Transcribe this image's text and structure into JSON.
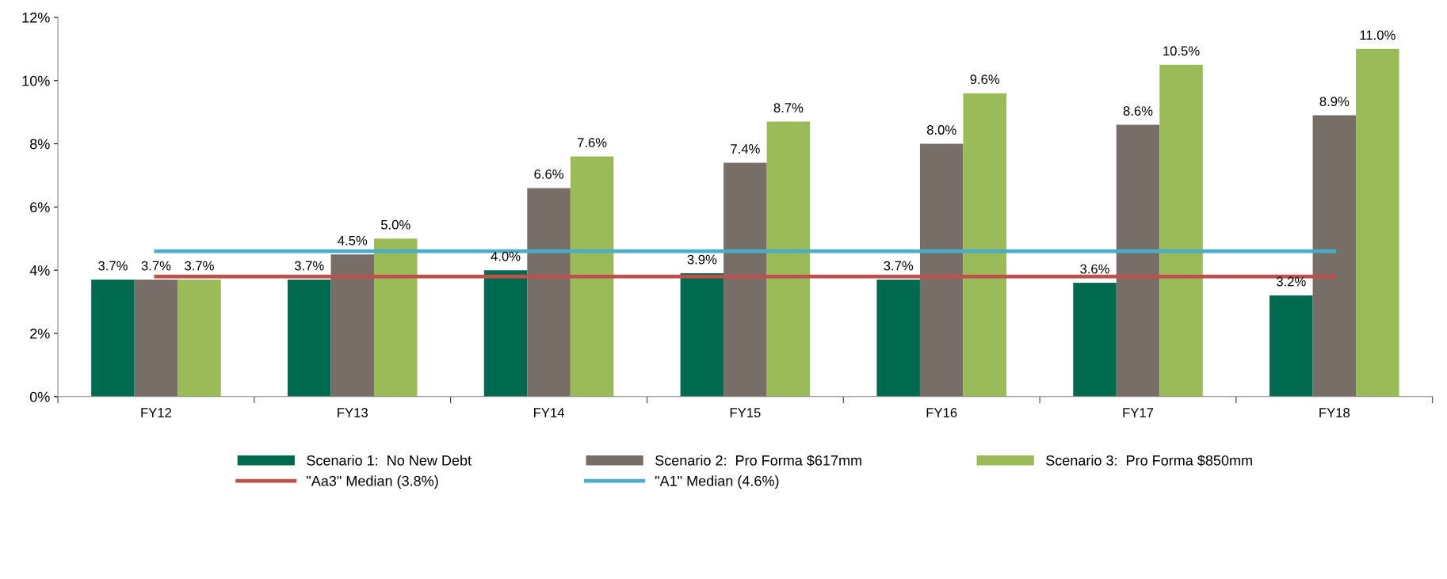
{
  "chart_data": {
    "type": "bar",
    "categories": [
      "FY12",
      "FY13",
      "FY14",
      "FY15",
      "FY16",
      "FY17",
      "FY18"
    ],
    "series": [
      {
        "name": "Scenario 1:  No New Debt",
        "color": "#006a4e",
        "values": [
          3.7,
          3.7,
          4.0,
          3.9,
          3.7,
          3.6,
          3.2
        ],
        "value_labels": [
          "3.7%",
          "3.7%",
          "4.0%",
          "3.9%",
          "3.7%",
          "3.6%",
          "3.2%"
        ]
      },
      {
        "name": "Scenario 2:  Pro Forma $617mm",
        "color": "#776e67",
        "values": [
          3.7,
          4.5,
          6.6,
          7.4,
          8.0,
          8.6,
          8.9
        ],
        "value_labels": [
          "3.7%",
          "4.5%",
          "6.6%",
          "7.4%",
          "8.0%",
          "8.6%",
          "8.9%"
        ]
      },
      {
        "name": "Scenario 3:  Pro Forma $850mm",
        "color": "#9bbb59",
        "values": [
          3.7,
          5.0,
          7.6,
          8.7,
          9.6,
          10.5,
          11.0
        ],
        "value_labels": [
          "3.7%",
          "5.0%",
          "7.6%",
          "8.7%",
          "9.6%",
          "10.5%",
          "11.0%"
        ]
      },
      {
        "name": "\"Aa3\" Median (3.8%)",
        "type": "line",
        "color": "#c0504d",
        "values": [
          3.8,
          3.8,
          3.8,
          3.8,
          3.8,
          3.8,
          3.8
        ]
      },
      {
        "name": "\"A1\" Median (4.6%)",
        "type": "line",
        "color": "#4bacc6",
        "values": [
          4.6,
          4.6,
          4.6,
          4.6,
          4.6,
          4.6,
          4.6
        ]
      }
    ],
    "ylim": [
      0,
      12
    ],
    "yticks": [
      {
        "value": 0,
        "label": "0%"
      },
      {
        "value": 2,
        "label": "2%"
      },
      {
        "value": 4,
        "label": "4%"
      },
      {
        "value": 6,
        "label": "6%"
      },
      {
        "value": 8,
        "label": "8%"
      },
      {
        "value": 10,
        "label": "10%"
      },
      {
        "value": 12,
        "label": "12%"
      }
    ],
    "grid": false,
    "legend": "bottom",
    "marker": "none",
    "line_style": "solid"
  }
}
